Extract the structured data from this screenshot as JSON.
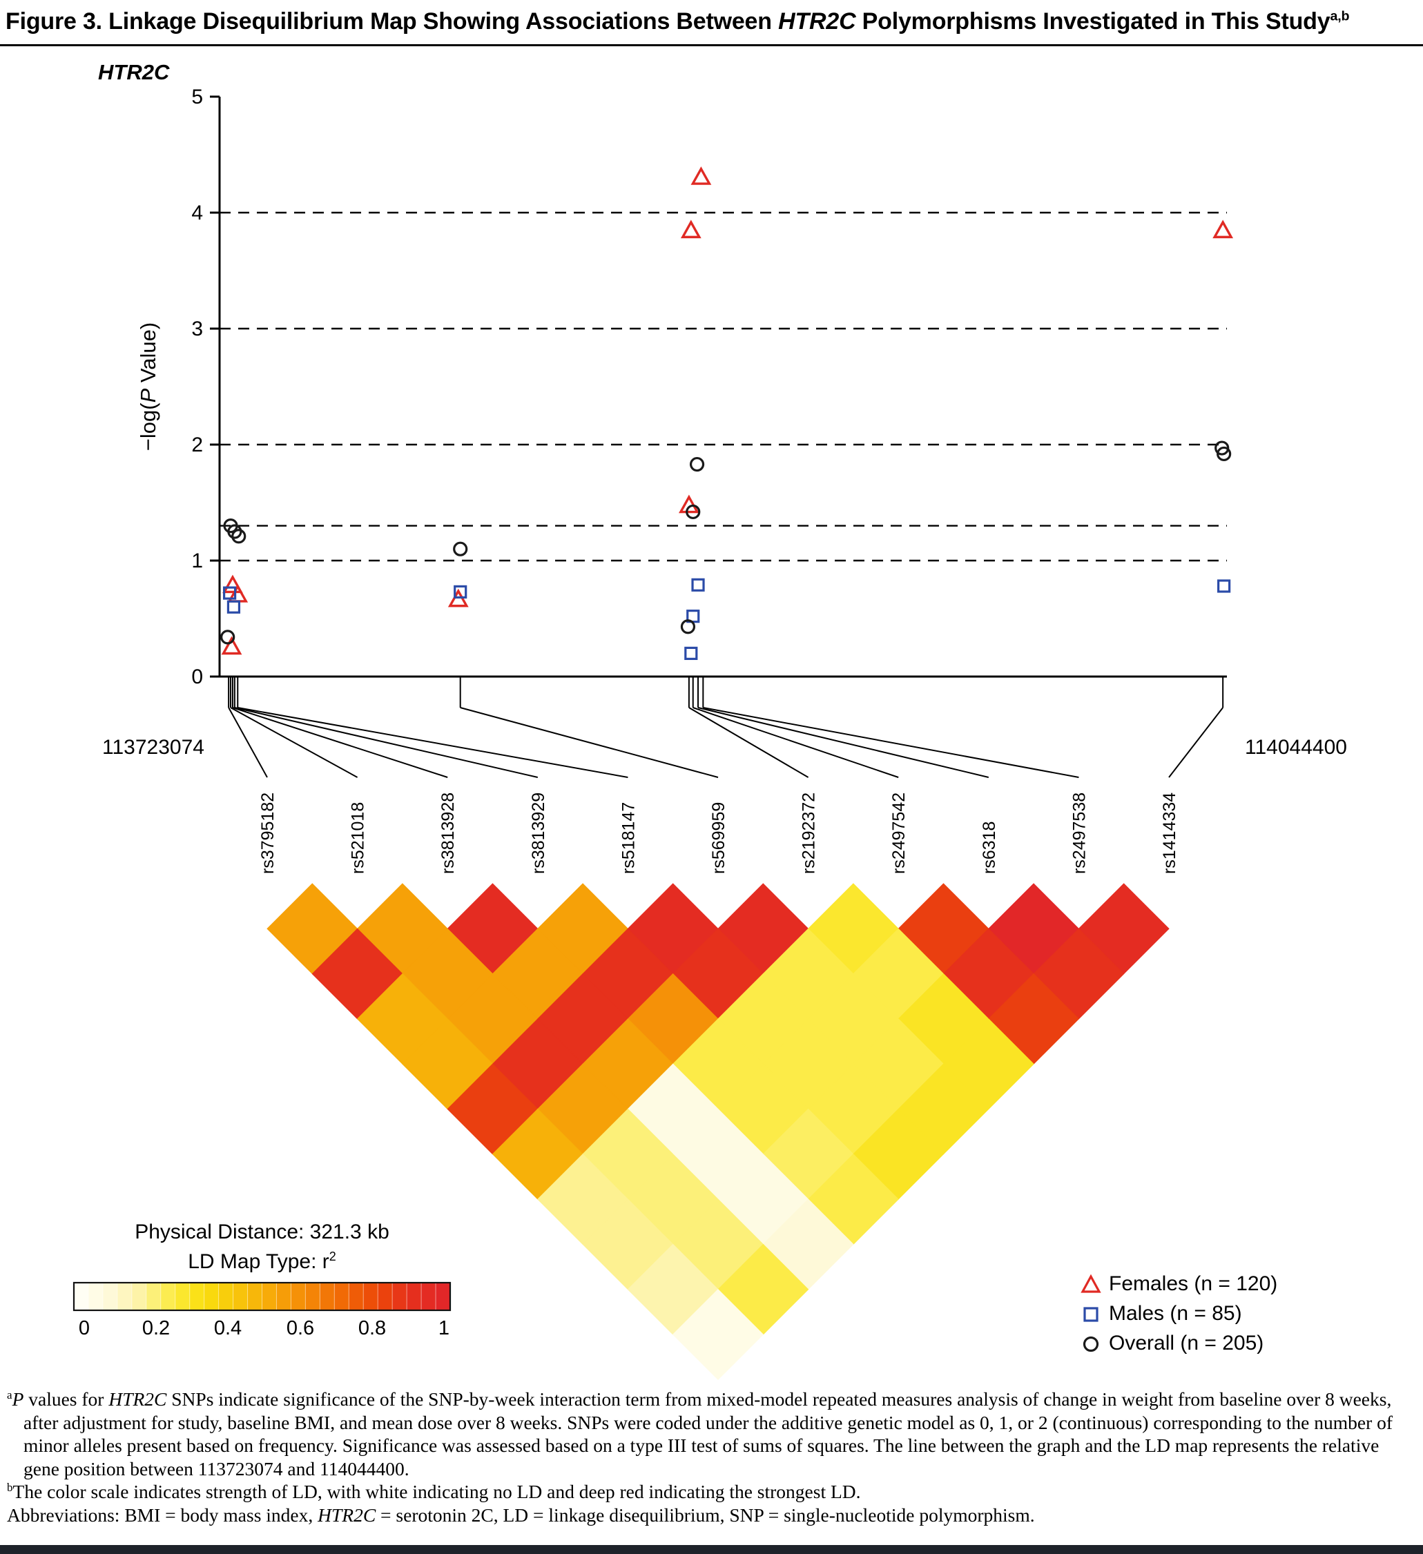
{
  "figure": {
    "label": "Figure 3.",
    "title_before": " Linkage Disequilibrium Map Showing Associations Between ",
    "gene": "HTR2C",
    "title_after": " Polymorphisms Investigated in This Study",
    "superscript": "a,b"
  },
  "plot": {
    "gene_label": "HTR2C",
    "y_label": {
      "pre": "−log(",
      "it": "P",
      "post": " Value)"
    },
    "y_ticks": [
      "0",
      "1",
      "2",
      "3",
      "4",
      "5"
    ],
    "y_max": 5,
    "gridlines": [
      1,
      1.3,
      2,
      3,
      4
    ],
    "x_left_label": "113723074",
    "x_right_label": "114044400"
  },
  "chart_data": {
    "type": "scatter",
    "title": "HTR2C",
    "ylabel": "−log(P Value)",
    "ylim": [
      0,
      5
    ],
    "grid": "dashed horizontal lines at 1, 1.3, 2, 3 and 4",
    "legend_position": "bottom-right",
    "x_axis": {
      "left_bp": "113723074",
      "right_bp": "114044400",
      "span_kb": "321.3"
    },
    "snps": [
      {
        "id": "rs3795182",
        "x_frac": 0.009
      },
      {
        "id": "rs521018",
        "x_frac": 0.011
      },
      {
        "id": "rs3813928",
        "x_frac": 0.013
      },
      {
        "id": "rs3813929",
        "x_frac": 0.015
      },
      {
        "id": "rs518147",
        "x_frac": 0.018
      },
      {
        "id": "rs569959",
        "x_frac": 0.239
      },
      {
        "id": "rs2192372",
        "x_frac": 0.466
      },
      {
        "id": "rs2497542",
        "x_frac": 0.47
      },
      {
        "id": "rs6318",
        "x_frac": 0.475
      },
      {
        "id": "rs2497538",
        "x_frac": 0.48
      },
      {
        "id": "rs1414334",
        "x_frac": 0.996
      }
    ],
    "series": [
      {
        "name": "Females (n = 120)",
        "marker": "triangle",
        "color": "#E02A24",
        "points": [
          [
            0.013,
            0.78
          ],
          [
            0.018,
            0.7
          ],
          [
            0.012,
            0.25
          ],
          [
            0.237,
            0.66
          ],
          [
            0.478,
            4.3
          ],
          [
            0.468,
            3.84
          ],
          [
            0.466,
            1.47
          ],
          [
            0.996,
            3.84
          ]
        ]
      },
      {
        "name": "Males (n = 85)",
        "marker": "square",
        "color": "#2B4BA8",
        "points": [
          [
            0.01,
            0.72
          ],
          [
            0.014,
            0.6
          ],
          [
            0.239,
            0.73
          ],
          [
            0.475,
            0.79
          ],
          [
            0.47,
            0.52
          ],
          [
            0.468,
            0.2
          ],
          [
            0.997,
            0.78
          ]
        ]
      },
      {
        "name": "Overall (n = 205)",
        "marker": "circle",
        "color": "#1A1A1A",
        "points": [
          [
            0.011,
            1.3
          ],
          [
            0.015,
            1.25
          ],
          [
            0.019,
            1.21
          ],
          [
            0.008,
            0.34
          ],
          [
            0.239,
            1.1
          ],
          [
            0.474,
            1.83
          ],
          [
            0.47,
            1.42
          ],
          [
            0.465,
            0.43
          ],
          [
            0.995,
            1.97
          ],
          [
            0.997,
            1.92
          ]
        ]
      }
    ],
    "ld_heatmap": {
      "type": "heatmap",
      "scale_label": "r2",
      "scale_range": [
        0,
        1
      ],
      "colormap_stops": [
        [
          0,
          "#FFFEF4"
        ],
        [
          0.08,
          "#FEF9D8"
        ],
        [
          0.16,
          "#FDF3A8"
        ],
        [
          0.22,
          "#FCEE62"
        ],
        [
          0.28,
          "#FBE72E"
        ],
        [
          0.34,
          "#F9DE0F"
        ],
        [
          0.42,
          "#F8C90B"
        ],
        [
          0.5,
          "#F7B109"
        ],
        [
          0.58,
          "#F59708"
        ],
        [
          0.66,
          "#F37E07"
        ],
        [
          0.74,
          "#F06306"
        ],
        [
          0.82,
          "#EC4708"
        ],
        [
          0.9,
          "#E6311C"
        ],
        [
          1,
          "#E22728"
        ]
      ],
      "pairs": [
        [
          0,
          1,
          0.55
        ],
        [
          1,
          2,
          0.55
        ],
        [
          2,
          3,
          0.95
        ],
        [
          3,
          4,
          0.55
        ],
        [
          4,
          5,
          0.95
        ],
        [
          5,
          6,
          0.95
        ],
        [
          6,
          7,
          0.28
        ],
        [
          7,
          8,
          0.85
        ],
        [
          8,
          9,
          1
        ],
        [
          9,
          10,
          0.95
        ],
        [
          0,
          2,
          0.9
        ],
        [
          1,
          3,
          0.55
        ],
        [
          2,
          4,
          0.55
        ],
        [
          3,
          5,
          0.9
        ],
        [
          4,
          6,
          0.9
        ],
        [
          5,
          7,
          0.25
        ],
        [
          6,
          8,
          0.25
        ],
        [
          7,
          9,
          0.9
        ],
        [
          8,
          10,
          0.9
        ],
        [
          0,
          3,
          0.5
        ],
        [
          1,
          4,
          0.55
        ],
        [
          2,
          5,
          0.9
        ],
        [
          3,
          6,
          0.6
        ],
        [
          4,
          7,
          0.25
        ],
        [
          5,
          8,
          0.25
        ],
        [
          6,
          9,
          0.3
        ],
        [
          7,
          10,
          0.85
        ],
        [
          0,
          4,
          0.5
        ],
        [
          1,
          5,
          0.9
        ],
        [
          2,
          6,
          0.55
        ],
        [
          3,
          7,
          0.25
        ],
        [
          4,
          8,
          0.25
        ],
        [
          5,
          9,
          0.25
        ],
        [
          6,
          10,
          0.3
        ],
        [
          0,
          5,
          0.85
        ],
        [
          1,
          6,
          0.55
        ],
        [
          2,
          7,
          0.05
        ],
        [
          3,
          8,
          0.25
        ],
        [
          4,
          9,
          0.25
        ],
        [
          5,
          10,
          0.3
        ],
        [
          0,
          6,
          0.5
        ],
        [
          1,
          7,
          0.2
        ],
        [
          2,
          8,
          0.05
        ],
        [
          3,
          9,
          0.22
        ],
        [
          4,
          10,
          0.3
        ],
        [
          0,
          7,
          0.18
        ],
        [
          1,
          8,
          0.2
        ],
        [
          2,
          9,
          0.05
        ],
        [
          3,
          10,
          0.25
        ],
        [
          0,
          8,
          0.18
        ],
        [
          1,
          9,
          0.2
        ],
        [
          2,
          10,
          0.08
        ],
        [
          0,
          9,
          0.15
        ],
        [
          1,
          10,
          0.25
        ],
        [
          0,
          10,
          0.04
        ]
      ]
    }
  },
  "colorbar": {
    "line1": "Physical Distance: 321.3 kb",
    "line2_pre": "LD Map Type: r",
    "line2_sup": "2",
    "ticks": [
      "0",
      "0.2",
      "0.4",
      "0.6",
      "0.8",
      "1"
    ]
  },
  "legend": {
    "items": [
      {
        "label": "Females (n = 120)",
        "marker": "triangle",
        "color": "#E02A24"
      },
      {
        "label": "Males (n = 85)",
        "marker": "square",
        "color": "#2B4BA8"
      },
      {
        "label": "Overall (n = 205)",
        "marker": "circle",
        "color": "#1A1A1A"
      }
    ]
  },
  "footnotes": {
    "a": {
      "sup": "a",
      "i1": "P",
      "t1": " values for ",
      "i2": "HTR2C",
      "t2": " SNPs indicate significance of the SNP-by-week interaction term from mixed-model repeated measures analysis of change in weight from baseline over 8 weeks, after adjustment for study, baseline BMI, and mean dose over 8 weeks. SNPs were coded under the additive genetic model as 0, 1, or 2 (continuous) corresponding to the number of minor alleles present based on frequency. Significance was assessed based on a type III test of sums of squares. The line between the graph and the LD map represents the relative gene position between 113723074 and 114044400."
    },
    "b": {
      "sup": "b",
      "t1": "The color scale indicates strength of LD, with white indicating no LD and deep red indicating the strongest LD."
    },
    "abbr": {
      "t1": "Abbreviations: BMI = body mass index, ",
      "i1": "HTR2C",
      "t2": " = serotonin 2C, LD = linkage disequilibrium, SNP = single-nucleotide polymorphism."
    }
  }
}
